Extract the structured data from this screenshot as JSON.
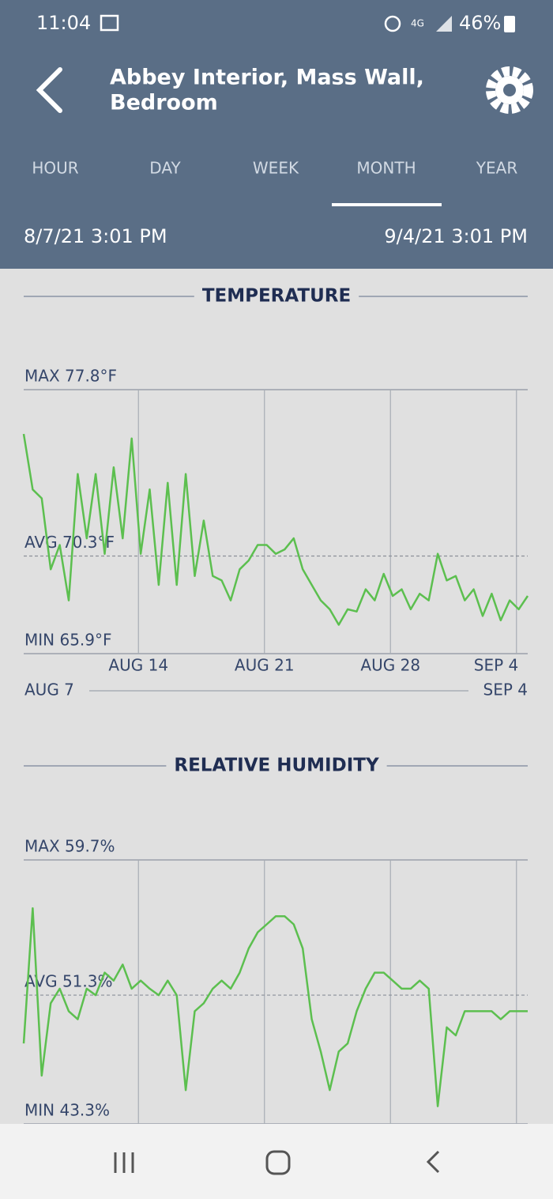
{
  "status_bar": {
    "time": "11:04",
    "battery": "46%"
  },
  "header": {
    "title_lines": [
      "Abbey Interior, Mass Wall,",
      "Bedroom"
    ]
  },
  "tabs": [
    "HOUR",
    "DAY",
    "WEEK",
    "MONTH",
    "YEAR"
  ],
  "active_tab": 3,
  "date_range": {
    "start": "8/7/21 3:01 PM",
    "end": "9/4/21 3:01 PM"
  },
  "chart_data": [
    {
      "type": "line",
      "title": "TEMPERATURE",
      "color": "#5cbf4f",
      "x": [
        "2021-08-07T15:01",
        "2021-08-08T03:01",
        "2021-08-08T15:01",
        "2021-08-09T03:01",
        "2021-08-09T15:01",
        "2021-08-10T03:01",
        "2021-08-10T15:01",
        "2021-08-11T03:01",
        "2021-08-11T15:01",
        "2021-08-12T03:01",
        "2021-08-12T15:01",
        "2021-08-13T03:01",
        "2021-08-13T15:01",
        "2021-08-14T03:01",
        "2021-08-14T15:01",
        "2021-08-15T03:01",
        "2021-08-15T15:01",
        "2021-08-16T03:01",
        "2021-08-16T15:01",
        "2021-08-17T03:01",
        "2021-08-17T15:01",
        "2021-08-18T03:01",
        "2021-08-18T15:01",
        "2021-08-19T03:01",
        "2021-08-19T15:01",
        "2021-08-20T03:01",
        "2021-08-20T15:01",
        "2021-08-21T03:01",
        "2021-08-21T15:01",
        "2021-08-22T03:01",
        "2021-08-22T15:01",
        "2021-08-23T03:01",
        "2021-08-23T15:01",
        "2021-08-24T03:01",
        "2021-08-24T15:01",
        "2021-08-25T03:01",
        "2021-08-25T15:01",
        "2021-08-26T03:01",
        "2021-08-26T15:01",
        "2021-08-27T03:01",
        "2021-08-27T15:01",
        "2021-08-28T03:01",
        "2021-08-28T15:01",
        "2021-08-29T03:01",
        "2021-08-29T15:01",
        "2021-08-30T03:01",
        "2021-08-30T15:01",
        "2021-08-31T03:01",
        "2021-08-31T15:01",
        "2021-09-01T03:01",
        "2021-09-01T15:01",
        "2021-09-02T03:01",
        "2021-09-02T15:01",
        "2021-09-03T03:01",
        "2021-09-03T15:01",
        "2021-09-04T03:01",
        "2021-09-04T15:01"
      ],
      "values": [
        75.8,
        73.3,
        72.9,
        69.7,
        70.8,
        68.3,
        74.0,
        71.1,
        74.0,
        70.4,
        74.3,
        71.1,
        75.6,
        70.4,
        73.3,
        69.0,
        73.6,
        69.0,
        74.0,
        69.4,
        71.9,
        69.4,
        69.2,
        68.3,
        69.7,
        70.1,
        70.8,
        70.8,
        70.4,
        70.6,
        71.1,
        69.7,
        69.0,
        68.3,
        67.9,
        67.2,
        67.9,
        67.8,
        68.8,
        68.3,
        69.5,
        68.5,
        68.8,
        67.9,
        68.6,
        68.3,
        70.4,
        69.2,
        69.4,
        68.3,
        68.8,
        67.6,
        68.6,
        67.4,
        68.3,
        67.9,
        68.5
      ],
      "xlim": [
        "2021-08-07T15:01",
        "2021-09-04T15:01"
      ],
      "xticks": [
        {
          "value": "2021-08-14T00:00",
          "label": "AUG 14"
        },
        {
          "value": "2021-08-21T00:00",
          "label": "AUG 21"
        },
        {
          "value": "2021-08-28T00:00",
          "label": "AUG 28"
        },
        {
          "value": "2021-09-04T00:00",
          "label": "SEP 4"
        }
      ],
      "ylim": [
        65.9,
        77.8
      ],
      "max_label": "MAX 77.8°F",
      "min_label": "MIN 65.9°F",
      "avg": 70.3,
      "avg_label": "AVG 70.3°F",
      "range_start": "AUG 7",
      "range_end": "SEP 4"
    },
    {
      "type": "line",
      "title": "RELATIVE HUMIDITY",
      "color": "#5cbf4f",
      "x": [
        "2021-08-07T15:01",
        "2021-08-08T03:01",
        "2021-08-08T15:01",
        "2021-08-09T03:01",
        "2021-08-09T15:01",
        "2021-08-10T03:01",
        "2021-08-10T15:01",
        "2021-08-11T03:01",
        "2021-08-11T15:01",
        "2021-08-12T03:01",
        "2021-08-12T15:01",
        "2021-08-13T03:01",
        "2021-08-13T15:01",
        "2021-08-14T03:01",
        "2021-08-14T15:01",
        "2021-08-15T03:01",
        "2021-08-15T15:01",
        "2021-08-16T03:01",
        "2021-08-16T15:01",
        "2021-08-17T03:01",
        "2021-08-17T15:01",
        "2021-08-18T03:01",
        "2021-08-18T15:01",
        "2021-08-19T03:01",
        "2021-08-19T15:01",
        "2021-08-20T03:01",
        "2021-08-20T15:01",
        "2021-08-21T03:01",
        "2021-08-21T15:01",
        "2021-08-22T03:01",
        "2021-08-22T15:01",
        "2021-08-23T03:01",
        "2021-08-23T15:01",
        "2021-08-24T03:01",
        "2021-08-24T15:01",
        "2021-08-25T03:01",
        "2021-08-25T15:01",
        "2021-08-26T03:01",
        "2021-08-26T15:01",
        "2021-08-27T03:01",
        "2021-08-27T15:01",
        "2021-08-28T03:01",
        "2021-08-28T15:01",
        "2021-08-29T03:01",
        "2021-08-29T15:01",
        "2021-08-30T03:01",
        "2021-08-30T15:01",
        "2021-08-31T03:01",
        "2021-08-31T15:01",
        "2021-09-01T03:01",
        "2021-09-01T15:01",
        "2021-09-02T03:01",
        "2021-09-02T15:01",
        "2021-09-03T03:01",
        "2021-09-03T15:01",
        "2021-09-04T03:01",
        "2021-09-04T15:01"
      ],
      "values": [
        48.3,
        56.7,
        46.3,
        50.8,
        51.7,
        50.3,
        49.8,
        51.7,
        51.3,
        52.7,
        52.2,
        53.2,
        51.7,
        52.2,
        51.7,
        51.3,
        52.2,
        51.3,
        45.4,
        50.3,
        50.8,
        51.7,
        52.2,
        51.7,
        52.7,
        54.2,
        55.2,
        55.7,
        56.2,
        56.2,
        55.7,
        54.2,
        49.8,
        47.8,
        45.4,
        47.8,
        48.3,
        50.3,
        51.7,
        52.7,
        52.7,
        52.2,
        51.7,
        51.7,
        52.2,
        51.7,
        44.4,
        49.3,
        48.8,
        50.3,
        50.3,
        50.3,
        50.3,
        49.8,
        50.3,
        50.3,
        50.3
      ],
      "xlim": [
        "2021-08-07T15:01",
        "2021-09-04T15:01"
      ],
      "xticks": [
        "2021-08-14T00:00",
        "2021-08-21T00:00",
        "2021-08-28T00:00",
        "2021-09-04T00:00"
      ],
      "ylim": [
        43.3,
        59.7
      ],
      "max_label": "MAX 59.7%",
      "min_label": "MIN 43.3%",
      "avg": 51.3,
      "avg_label": "AVG 51.3%"
    }
  ]
}
